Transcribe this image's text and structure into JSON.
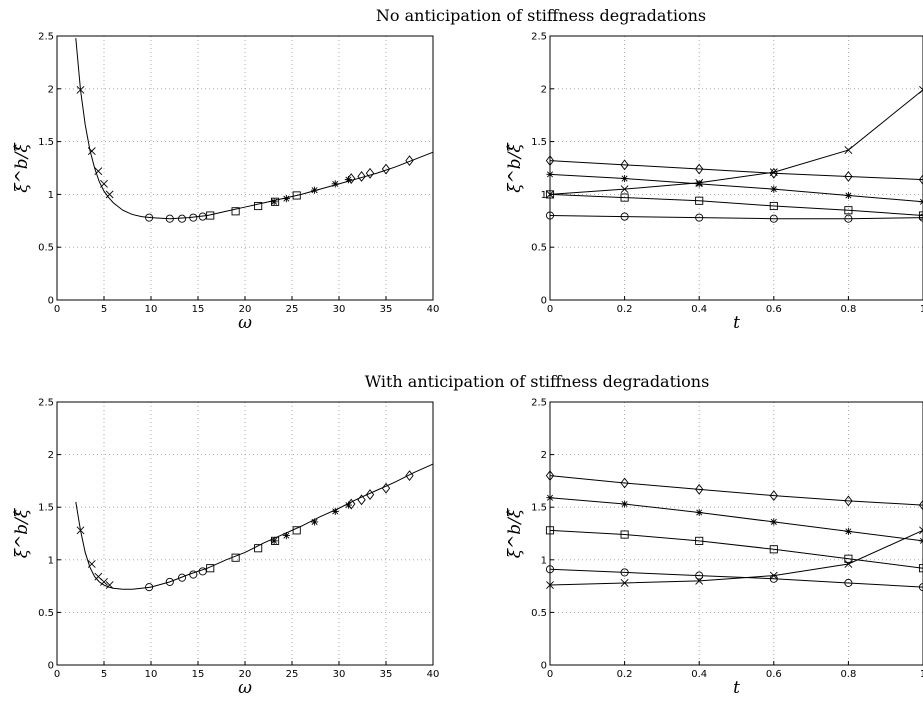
{
  "figure": {
    "title_top": "No anticipation of stiffness degradations",
    "title_bottom": "With anticipation of stiffness degradations"
  },
  "chart_data": [
    {
      "id": "top-left",
      "type": "line",
      "xlabel": "ω",
      "ylabel": "ξ^b/ξ̂",
      "xlim": [
        0,
        40
      ],
      "ylim": [
        0,
        2.5
      ],
      "xticks": [
        0,
        5,
        10,
        15,
        20,
        25,
        30,
        35,
        40
      ],
      "yticks": [
        0,
        0.5,
        1,
        1.5,
        2,
        2.5
      ],
      "grid": true,
      "curve": {
        "x": [
          2.0,
          2.5,
          3.0,
          3.5,
          4.0,
          4.5,
          5.0,
          5.5,
          6.0,
          7.0,
          8.0,
          9.0,
          10.0,
          12.0,
          14.0,
          16.0,
          18.0,
          20.0,
          22.0,
          24.0,
          26.0,
          28.0,
          30.0,
          32.0,
          34.0,
          36.0,
          38.0,
          40.0
        ],
        "y": [
          2.48,
          1.99,
          1.66,
          1.42,
          1.25,
          1.12,
          1.03,
          0.97,
          0.92,
          0.85,
          0.81,
          0.79,
          0.78,
          0.77,
          0.78,
          0.8,
          0.84,
          0.88,
          0.92,
          0.96,
          1.0,
          1.05,
          1.1,
          1.15,
          1.2,
          1.26,
          1.33,
          1.4
        ]
      },
      "markers": [
        {
          "shape": "x",
          "x": [
            2.5,
            3.7,
            4.4,
            5.0,
            5.6
          ],
          "y": [
            1.99,
            1.41,
            1.22,
            1.1,
            1.0
          ]
        },
        {
          "shape": "circle",
          "x": [
            9.8,
            12.0,
            13.3,
            14.5,
            15.5
          ],
          "y": [
            0.78,
            0.77,
            0.77,
            0.78,
            0.79
          ]
        },
        {
          "shape": "square",
          "x": [
            16.3,
            19.0,
            21.4,
            23.2,
            25.5
          ],
          "y": [
            0.8,
            0.84,
            0.89,
            0.93,
            0.99
          ]
        },
        {
          "shape": "star",
          "x": [
            23.1,
            24.4,
            27.4,
            29.6,
            31.0
          ],
          "y": [
            0.93,
            0.96,
            1.04,
            1.1,
            1.14
          ]
        },
        {
          "shape": "diamond",
          "x": [
            31.3,
            32.4,
            33.3,
            35.0,
            37.5
          ],
          "y": [
            1.15,
            1.17,
            1.2,
            1.24,
            1.32
          ]
        }
      ]
    },
    {
      "id": "top-right",
      "type": "line",
      "xlabel": "t",
      "ylabel": "ξ^b/ξ̂",
      "xlim": [
        0,
        1
      ],
      "ylim": [
        0,
        2.5
      ],
      "xticks": [
        0,
        0.2,
        0.4,
        0.6,
        0.8,
        1
      ],
      "yticks": [
        0,
        0.5,
        1,
        1.5,
        2,
        2.5
      ],
      "grid": true,
      "x": [
        0,
        0.2,
        0.4,
        0.6,
        0.8,
        1.0
      ],
      "series": [
        {
          "marker": "x",
          "values": [
            1.0,
            1.05,
            1.11,
            1.21,
            1.42,
            1.99
          ]
        },
        {
          "marker": "circle",
          "values": [
            0.8,
            0.79,
            0.78,
            0.77,
            0.77,
            0.78
          ]
        },
        {
          "marker": "square",
          "values": [
            1.0,
            0.97,
            0.94,
            0.89,
            0.85,
            0.8
          ]
        },
        {
          "marker": "star",
          "values": [
            1.19,
            1.15,
            1.1,
            1.05,
            0.99,
            0.93
          ]
        },
        {
          "marker": "diamond",
          "values": [
            1.32,
            1.28,
            1.24,
            1.2,
            1.17,
            1.14
          ]
        }
      ]
    },
    {
      "id": "bottom-left",
      "type": "line",
      "xlabel": "ω",
      "ylabel": "ξ^b/ξ̂",
      "xlim": [
        0,
        40
      ],
      "ylim": [
        0,
        2.5
      ],
      "xticks": [
        0,
        5,
        10,
        15,
        20,
        25,
        30,
        35,
        40
      ],
      "yticks": [
        0,
        0.5,
        1,
        1.5,
        2,
        2.5
      ],
      "grid": true,
      "curve": {
        "x": [
          2.0,
          2.5,
          3.0,
          3.5,
          4.0,
          4.5,
          5.0,
          5.5,
          6.0,
          7.0,
          8.0,
          9.0,
          10.0,
          12.0,
          14.0,
          16.0,
          18.0,
          20.0,
          22.0,
          24.0,
          26.0,
          28.0,
          30.0,
          32.0,
          34.0,
          36.0,
          38.0,
          40.0
        ],
        "y": [
          1.55,
          1.28,
          1.07,
          0.93,
          0.84,
          0.79,
          0.76,
          0.74,
          0.73,
          0.72,
          0.72,
          0.73,
          0.74,
          0.79,
          0.86,
          0.92,
          1.0,
          1.07,
          1.16,
          1.24,
          1.32,
          1.41,
          1.49,
          1.58,
          1.66,
          1.74,
          1.83,
          1.91
        ]
      },
      "markers": [
        {
          "shape": "x",
          "x": [
            2.5,
            3.7,
            4.4,
            5.0,
            5.6
          ],
          "y": [
            1.28,
            0.96,
            0.84,
            0.79,
            0.76
          ]
        },
        {
          "shape": "circle",
          "x": [
            9.8,
            12.0,
            13.3,
            14.5,
            15.5
          ],
          "y": [
            0.74,
            0.79,
            0.83,
            0.86,
            0.89
          ]
        },
        {
          "shape": "square",
          "x": [
            16.3,
            19.0,
            21.4,
            23.2,
            25.5
          ],
          "y": [
            0.92,
            1.02,
            1.11,
            1.18,
            1.28
          ]
        },
        {
          "shape": "star",
          "x": [
            23.1,
            24.4,
            27.4,
            29.6,
            31.0
          ],
          "y": [
            1.18,
            1.23,
            1.36,
            1.46,
            1.52
          ]
        },
        {
          "shape": "diamond",
          "x": [
            31.3,
            32.4,
            33.3,
            35.0,
            37.5
          ],
          "y": [
            1.53,
            1.57,
            1.62,
            1.68,
            1.8
          ]
        }
      ]
    },
    {
      "id": "bottom-right",
      "type": "line",
      "xlabel": "t",
      "ylabel": "ξ^b/ξ̂",
      "xlim": [
        0,
        1
      ],
      "ylim": [
        0,
        2.5
      ],
      "xticks": [
        0,
        0.2,
        0.4,
        0.6,
        0.8,
        1
      ],
      "yticks": [
        0,
        0.5,
        1,
        1.5,
        2,
        2.5
      ],
      "grid": true,
      "x": [
        0,
        0.2,
        0.4,
        0.6,
        0.8,
        1.0
      ],
      "series": [
        {
          "marker": "x",
          "values": [
            0.76,
            0.78,
            0.8,
            0.85,
            0.96,
            1.28
          ]
        },
        {
          "marker": "circle",
          "values": [
            0.91,
            0.88,
            0.85,
            0.82,
            0.78,
            0.74
          ]
        },
        {
          "marker": "square",
          "values": [
            1.28,
            1.24,
            1.18,
            1.1,
            1.01,
            0.92
          ]
        },
        {
          "marker": "star",
          "values": [
            1.59,
            1.53,
            1.45,
            1.36,
            1.27,
            1.18
          ]
        },
        {
          "marker": "diamond",
          "values": [
            1.8,
            1.73,
            1.67,
            1.61,
            1.56,
            1.52
          ]
        }
      ]
    }
  ]
}
